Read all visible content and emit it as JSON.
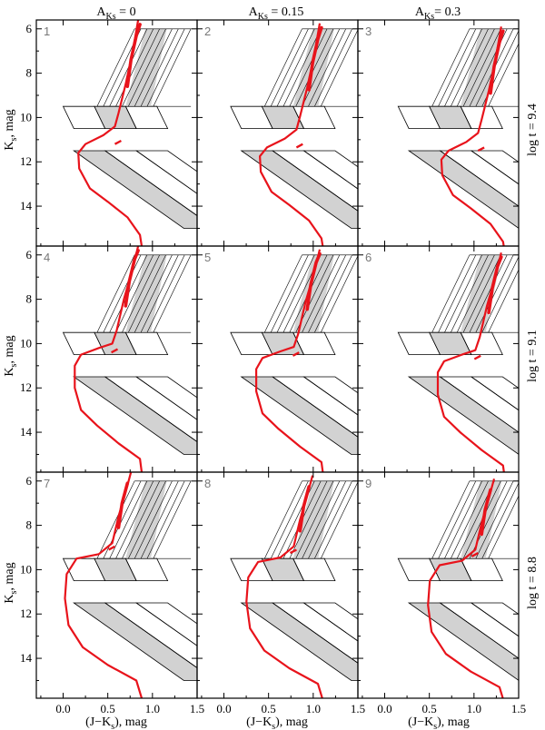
{
  "chart_data": {
    "type": "line",
    "figure": "Grid of 9 Ks vs (J-Ks) colour-magnitude panels with theoretical isochrones (red) and selection boxes",
    "xlabel": "(J−K",
    "xlabel_sub": "s",
    "xlabel_tail": "), mag",
    "ylabel": "K",
    "ylabel_sub": "s",
    "ylabel_tail": ", mag",
    "xlim": [
      -0.3,
      1.5
    ],
    "ylim": [
      15.8,
      5.6
    ],
    "xticks": [
      0.0,
      0.5,
      1.0,
      1.5
    ],
    "xtick_labels": [
      "0.0",
      "0.5",
      "1.0",
      "1.5"
    ],
    "yticks": [
      6,
      8,
      10,
      12,
      14
    ],
    "ytick_labels": [
      "6",
      "8",
      "10",
      "12",
      "14"
    ],
    "columns": [
      {
        "label": "A",
        "sub": "Ks",
        "value_text": " = 0",
        "extinction": 0.0
      },
      {
        "label": "A",
        "sub": "Ks",
        "value_text": " = 0.15",
        "extinction": 0.15
      },
      {
        "label": "A",
        "sub": "Ks",
        "value_text": "= 0.3",
        "extinction": 0.3
      }
    ],
    "rows": [
      {
        "label": "log t = 9.4",
        "log_age": 9.4
      },
      {
        "label": "log t = 9.1",
        "log_age": 9.1
      },
      {
        "label": "log t = 8.8",
        "log_age": 8.8
      }
    ],
    "panel_numbers": [
      "1",
      "2",
      "3",
      "4",
      "5",
      "6",
      "7",
      "8",
      "9"
    ],
    "isochrones": {
      "9.4": [
        [
          0.88,
          15.8
        ],
        [
          0.86,
          15.3
        ],
        [
          0.72,
          14.5
        ],
        [
          0.5,
          13.8
        ],
        [
          0.3,
          13.2
        ],
        [
          0.18,
          12.3
        ],
        [
          0.17,
          11.6
        ],
        [
          0.25,
          11.2
        ],
        [
          0.45,
          10.8
        ],
        [
          0.58,
          10.4
        ],
        [
          0.62,
          9.8
        ],
        [
          0.7,
          8.5
        ],
        [
          0.78,
          7.0
        ],
        [
          0.84,
          5.6
        ]
      ],
      "9.1": [
        [
          0.88,
          15.8
        ],
        [
          0.86,
          15.2
        ],
        [
          0.62,
          14.5
        ],
        [
          0.38,
          13.7
        ],
        [
          0.2,
          13.0
        ],
        [
          0.13,
          12.0
        ],
        [
          0.13,
          11.0
        ],
        [
          0.2,
          10.5
        ],
        [
          0.4,
          10.2
        ],
        [
          0.55,
          10.0
        ],
        [
          0.6,
          9.4
        ],
        [
          0.68,
          8.0
        ],
        [
          0.78,
          6.6
        ],
        [
          0.84,
          5.6
        ]
      ],
      "8.8": [
        [
          0.88,
          15.8
        ],
        [
          0.82,
          15.0
        ],
        [
          0.5,
          14.3
        ],
        [
          0.22,
          13.5
        ],
        [
          0.06,
          12.5
        ],
        [
          0.02,
          11.3
        ],
        [
          0.04,
          10.2
        ],
        [
          0.15,
          9.5
        ],
        [
          0.4,
          9.3
        ],
        [
          0.55,
          8.8
        ],
        [
          0.62,
          7.6
        ],
        [
          0.72,
          6.2
        ],
        [
          0.76,
          5.6
        ]
      ]
    },
    "giant_branch_thick": {
      "9.4": [
        [
          0.72,
          8.6
        ],
        [
          0.76,
          7.4
        ],
        [
          0.82,
          6.3
        ],
        [
          0.86,
          5.8
        ]
      ],
      "9.1": [
        [
          0.7,
          8.3
        ],
        [
          0.74,
          7.2
        ],
        [
          0.8,
          6.2
        ],
        [
          0.84,
          5.8
        ]
      ],
      "8.8": [
        [
          0.62,
          8.1
        ],
        [
          0.66,
          7.0
        ],
        [
          0.72,
          6.1
        ]
      ]
    },
    "clump_marker": {
      "9.4": [
        0.62,
        11.2
      ],
      "9.1": [
        0.58,
        10.4
      ],
      "8.8": [
        0.55,
        9.1
      ]
    },
    "selection_boxes": {
      "ms_boxes": {
        "k_bright": 11.5,
        "k_faint": 15.0,
        "width": 0.35,
        "slope": -0.22,
        "x_starts": [
          0.12,
          0.47,
          0.82
        ]
      },
      "sgb_boxes": {
        "k_bright": 9.5,
        "k_faint": 10.5,
        "width": 0.35,
        "x_starts": [
          0.0,
          0.35,
          0.7
        ]
      },
      "rgb_strips": {
        "k_bright": 6.0,
        "k_faint": 9.5,
        "slope": -0.06,
        "n": 9
      }
    }
  }
}
